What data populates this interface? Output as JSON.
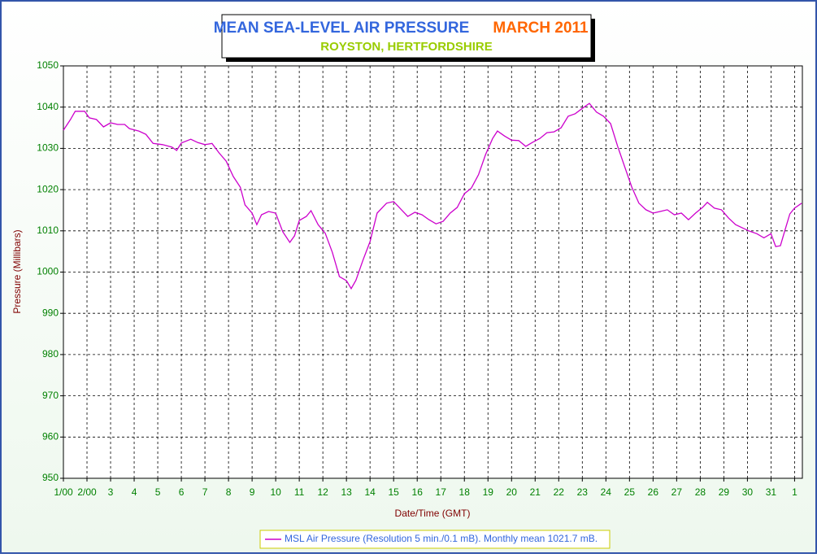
{
  "chart_data": {
    "type": "line",
    "title": "MEAN SEA-LEVEL AIR PRESSURE",
    "title_period": "MARCH 2011",
    "subtitle": "ROYSTON, HERTFORDSHIRE",
    "xlabel": "Date/Time (GMT)",
    "ylabel": "Pressure (Millibars)",
    "x": [
      0,
      0.3,
      0.5,
      0.9,
      1.1,
      1.4,
      1.7,
      2.0,
      2.3,
      2.6,
      2.8,
      3.2,
      3.5,
      3.8,
      4.2,
      4.6,
      4.8,
      5.0,
      5.4,
      5.7,
      6.0,
      6.3,
      6.6,
      6.9,
      7.2,
      7.5,
      7.7,
      8.0,
      8.2,
      8.4,
      8.7,
      9.0,
      9.3,
      9.6,
      9.8,
      10.0,
      10.3,
      10.5,
      10.8,
      11.1,
      11.4,
      11.7,
      12.0,
      12.2,
      12.4,
      12.7,
      13.0,
      13.3,
      13.7,
      14.0,
      14.3,
      14.6,
      14.9,
      15.2,
      15.5,
      15.8,
      16.1,
      16.4,
      16.7,
      17.0,
      17.3,
      17.6,
      17.9,
      18.2,
      18.4,
      18.7,
      19.0,
      19.3,
      19.6,
      19.9,
      20.2,
      20.5,
      20.8,
      21.1,
      21.4,
      21.7,
      22.0,
      22.3,
      22.6,
      22.9,
      23.2,
      23.5,
      23.8,
      24.1,
      24.4,
      24.7,
      25.0,
      25.3,
      25.6,
      25.9,
      26.2,
      26.5,
      26.8,
      27.1,
      27.3,
      27.6,
      27.9,
      28.2,
      28.5,
      28.8,
      29.1,
      29.4,
      29.7,
      30.0,
      30.2,
      30.4,
      30.6,
      30.8,
      31.0,
      31.3
    ],
    "series": [
      {
        "name": "MSL Air Pressure (Resolution 5 min./0.1 mB). Monthly mean 1021.7 mB.",
        "color": "#cc00cc",
        "values": [
          1034.4,
          1037,
          1039,
          1039,
          1037.4,
          1037,
          1035.2,
          1036.2,
          1035.8,
          1035.8,
          1034.8,
          1034.2,
          1033.4,
          1031.2,
          1030.9,
          1030.3,
          1029.5,
          1031.3,
          1032.2,
          1031.4,
          1030.9,
          1031.2,
          1028.9,
          1026.9,
          1023.2,
          1020.6,
          1016.3,
          1014.3,
          1011.5,
          1013.9,
          1014.7,
          1014.3,
          1009.8,
          1007.2,
          1008.8,
          1012.5,
          1013.5,
          1014.9,
          1011.5,
          1009.4,
          1004.8,
          998.9,
          997.9,
          996,
          998,
          1002.9,
          1007.4,
          1014.3,
          1016.7,
          1017.1,
          1015.3,
          1013.5,
          1014.5,
          1013.9,
          1012.7,
          1011.7,
          1012.3,
          1014.3,
          1015.7,
          1019,
          1020.4,
          1023.6,
          1028.5,
          1032.4,
          1034.2,
          1033,
          1032,
          1031.9,
          1030.5,
          1031.5,
          1032.4,
          1033.8,
          1034,
          1035,
          1037.8,
          1038.4,
          1039.7,
          1040.9,
          1038.8,
          1037.8,
          1036,
          1030.5,
          1025.5,
          1020.6,
          1016.7,
          1015.1,
          1014.3,
          1014.7,
          1015.1,
          1013.9,
          1014.3,
          1012.7,
          1014.3,
          1015.7,
          1016.9,
          1015.5,
          1015.1,
          1013.1,
          1011.5,
          1010.7,
          1009.9,
          1009.3,
          1008.3,
          1009.3,
          1006.2,
          1006.4,
          1010.3,
          1014.1,
          1015.5,
          1016.7
        ]
      }
    ],
    "xlim": [
      0,
      31.33
    ],
    "xticks": [
      {
        "value": 0,
        "label": "1/00"
      },
      {
        "value": 1,
        "label": "2/00"
      },
      {
        "value": 2,
        "label": "3"
      },
      {
        "value": 3,
        "label": "4"
      },
      {
        "value": 4,
        "label": "5"
      },
      {
        "value": 5,
        "label": "6"
      },
      {
        "value": 6,
        "label": "7"
      },
      {
        "value": 7,
        "label": "8"
      },
      {
        "value": 8,
        "label": "9"
      },
      {
        "value": 9,
        "label": "10"
      },
      {
        "value": 10,
        "label": "11"
      },
      {
        "value": 11,
        "label": "12"
      },
      {
        "value": 12,
        "label": "13"
      },
      {
        "value": 13,
        "label": "14"
      },
      {
        "value": 14,
        "label": "15"
      },
      {
        "value": 15,
        "label": "16"
      },
      {
        "value": 16,
        "label": "17"
      },
      {
        "value": 17,
        "label": "18"
      },
      {
        "value": 18,
        "label": "19"
      },
      {
        "value": 19,
        "label": "20"
      },
      {
        "value": 20,
        "label": "21"
      },
      {
        "value": 21,
        "label": "22"
      },
      {
        "value": 22,
        "label": "23"
      },
      {
        "value": 23,
        "label": "24"
      },
      {
        "value": 24,
        "label": "25"
      },
      {
        "value": 25,
        "label": "26"
      },
      {
        "value": 26,
        "label": "27"
      },
      {
        "value": 27,
        "label": "28"
      },
      {
        "value": 28,
        "label": "29"
      },
      {
        "value": 29,
        "label": "30"
      },
      {
        "value": 30,
        "label": "31"
      },
      {
        "value": 31,
        "label": "1"
      }
    ],
    "ylim": [
      950,
      1050
    ],
    "yticks": [
      950,
      960,
      970,
      980,
      990,
      1000,
      1010,
      1020,
      1030,
      1040,
      1050
    ],
    "grid": true
  }
}
